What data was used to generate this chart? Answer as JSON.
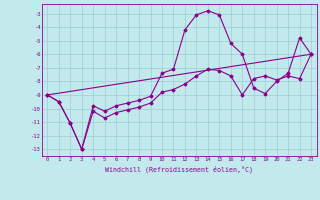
{
  "xlabel": "Windchill (Refroidissement éolien,°C)",
  "background_color": "#c2eaed",
  "grid_color": "#9dcdd4",
  "line_color": "#8b008b",
  "xlim": [
    -0.5,
    23.5
  ],
  "ylim": [
    -13.5,
    -2.3
  ],
  "xticks": [
    0,
    1,
    2,
    3,
    4,
    5,
    6,
    7,
    8,
    9,
    10,
    11,
    12,
    13,
    14,
    15,
    16,
    17,
    18,
    19,
    20,
    21,
    22,
    23
  ],
  "yticks": [
    -13,
    -12,
    -11,
    -10,
    -9,
    -8,
    -7,
    -6,
    -5,
    -4,
    -3
  ],
  "line1_x": [
    0,
    1,
    2,
    3,
    4,
    5,
    6,
    7,
    8,
    9,
    10,
    11,
    12,
    13,
    14,
    15,
    16,
    17,
    18,
    19,
    20,
    21,
    22,
    23
  ],
  "line1_y": [
    -9.0,
    -9.5,
    -11.1,
    -13.0,
    -9.8,
    -10.2,
    -9.8,
    -9.6,
    -9.4,
    -9.1,
    -7.4,
    -7.1,
    -4.2,
    -3.1,
    -2.8,
    -3.1,
    -5.2,
    -6.0,
    -8.5,
    -8.9,
    -8.0,
    -7.4,
    -4.8,
    -6.0
  ],
  "line2_x": [
    0,
    1,
    2,
    3,
    4,
    5,
    6,
    7,
    8,
    9,
    10,
    11,
    12,
    13,
    14,
    15,
    16,
    17,
    18,
    19,
    20,
    21,
    22,
    23
  ],
  "line2_y": [
    -9.0,
    -9.5,
    -11.1,
    -13.0,
    -10.2,
    -10.7,
    -10.3,
    -10.1,
    -9.9,
    -9.6,
    -8.8,
    -8.6,
    -8.2,
    -7.6,
    -7.1,
    -7.2,
    -7.6,
    -9.0,
    -7.8,
    -7.6,
    -7.9,
    -7.6,
    -7.8,
    -6.0
  ],
  "line3_x": [
    0,
    23
  ],
  "line3_y": [
    -9.0,
    -6.0
  ],
  "tick_fontsize": 4.0,
  "xlabel_fontsize": 4.8,
  "marker_size": 1.5,
  "line_width": 0.8
}
